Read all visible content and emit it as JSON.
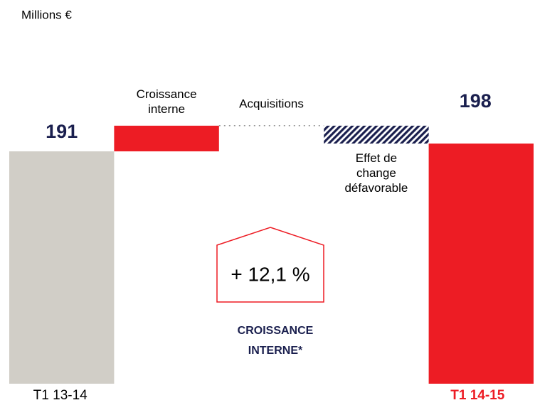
{
  "chart_data": {
    "type": "waterfall",
    "unit_label": "Millions €",
    "categories": [
      "T1 13-14",
      "Croissance\ninterne",
      "Acquisitions",
      "Effet de\nchange\ndéfavorable",
      "T1 14-15"
    ],
    "values": [
      191,
      23,
      0,
      -16,
      198
    ],
    "colors": [
      "#d1cec7",
      "#ed1c24",
      "#1a1f4e",
      "#1a1f4e",
      "#ed1c24"
    ],
    "annotation": "+ 12,1 %",
    "annotation_caption": "CROISSANCE\nINTERNE*"
  }
}
